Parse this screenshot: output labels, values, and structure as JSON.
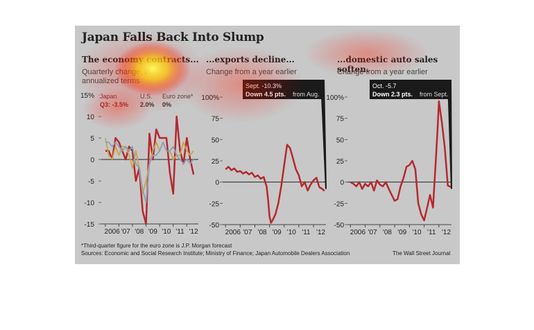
{
  "title": "Japan Falls Back Into Slump",
  "footnote": "*Third-quarter figure for the euro zone is J.P. Morgan forecast",
  "sources": "Sources: Economic and Social Research Institute; Ministry of Finance; Japan Automobile Dealers Association",
  "credit": "The Wall Street Journal",
  "colors": {
    "japan": "#b5282e",
    "us": "#c9a44a",
    "euro": "#8aa0b8",
    "background": "#c8c8c8",
    "annotation_bg": "#1a1a1a"
  },
  "chart_data": [
    {
      "type": "line",
      "title": "The economy contracts...",
      "subtitle_line1": "Quarterly change, in",
      "subtitle_line2": "annualized terms",
      "ylim": [
        -15,
        15
      ],
      "y_ticks": [
        "15%",
        "10",
        "5",
        "0",
        "-5",
        "-10",
        "-15"
      ],
      "x_ticks": [
        "2006",
        "'07",
        "'08",
        "'09",
        "'10",
        "'11",
        "'12"
      ],
      "legend": [
        {
          "name": "Japan",
          "value": "Q3: -3.5%"
        },
        {
          "name": "U.S.",
          "value": "2.0%"
        },
        {
          "name": "Euro zone*",
          "value": "0%"
        }
      ],
      "series": [
        {
          "name": "Japan",
          "color": "#b5282e",
          "x": [
            2006.0,
            2006.25,
            2006.5,
            2006.75,
            2007.0,
            2007.25,
            2007.5,
            2007.75,
            2008.0,
            2008.25,
            2008.5,
            2008.75,
            2009.0,
            2009.25,
            2009.5,
            2009.75,
            2010.0,
            2010.25,
            2010.5,
            2010.75,
            2011.0,
            2011.25,
            2011.5,
            2011.75,
            2012.0,
            2012.25,
            2012.5
          ],
          "values": [
            2,
            2,
            0,
            5,
            4,
            2,
            0,
            3,
            2,
            -5,
            -2,
            -12,
            -15,
            6,
            0,
            7,
            5,
            5,
            5,
            -3,
            -8,
            10,
            2,
            -1,
            5,
            0,
            -3.5
          ]
        },
        {
          "name": "U.S.",
          "color": "#c9a44a",
          "x": [
            2006.0,
            2006.25,
            2006.5,
            2006.75,
            2007.0,
            2007.25,
            2007.5,
            2007.75,
            2008.0,
            2008.25,
            2008.5,
            2008.75,
            2009.0,
            2009.25,
            2009.5,
            2009.75,
            2010.0,
            2010.25,
            2010.5,
            2010.75,
            2011.0,
            2011.25,
            2011.5,
            2011.75,
            2012.0,
            2012.25,
            2012.5
          ],
          "values": [
            5,
            1,
            0,
            3,
            1,
            3,
            3,
            1,
            -2,
            2,
            -2,
            -8,
            -5,
            -1,
            2,
            4,
            2,
            4,
            2,
            2,
            0,
            1,
            1,
            4,
            2,
            1,
            2
          ]
        },
        {
          "name": "Euro zone*",
          "color": "#8aa0b8",
          "x": [
            2006.0,
            2006.25,
            2006.5,
            2006.75,
            2007.0,
            2007.25,
            2007.5,
            2007.75,
            2008.0,
            2008.25,
            2008.5,
            2008.75,
            2009.0,
            2009.25,
            2009.5,
            2009.75,
            2010.0,
            2010.25,
            2010.5,
            2010.75,
            2011.0,
            2011.25,
            2011.5,
            2011.75,
            2012.0,
            2012.25,
            2012.5
          ],
          "values": [
            4,
            4,
            3,
            4,
            3,
            2,
            3,
            2,
            3,
            -1,
            -2,
            -7,
            -10,
            -1,
            1,
            1,
            2,
            4,
            2,
            2,
            3,
            1,
            0,
            -1,
            0,
            -1,
            0
          ]
        }
      ]
    },
    {
      "type": "line",
      "title": "...exports decline...",
      "subtitle_line1": "Change from a year earlier",
      "ylim": [
        -50,
        100
      ],
      "y_ticks": [
        "100%",
        "75",
        "50",
        "25",
        "0",
        "-25",
        "-50"
      ],
      "x_ticks": [
        "2006",
        "'07",
        "'08",
        "'09",
        "'10",
        "'11",
        "'12"
      ],
      "annotation": {
        "line1": "Sept. -10.3%",
        "line2_bold": "Down 4.5 pts.",
        "line2_rest": "from Aug."
      },
      "series": [
        {
          "name": "Exports",
          "color": "#b5282e",
          "x": [
            2006.0,
            2006.2,
            2006.4,
            2006.6,
            2006.8,
            2007.0,
            2007.2,
            2007.4,
            2007.6,
            2007.8,
            2008.0,
            2008.2,
            2008.4,
            2008.6,
            2008.8,
            2008.9,
            2009.0,
            2009.1,
            2009.2,
            2009.4,
            2009.6,
            2009.8,
            2010.0,
            2010.2,
            2010.4,
            2010.6,
            2010.8,
            2011.0,
            2011.2,
            2011.4,
            2011.6,
            2011.8,
            2012.0,
            2012.2,
            2012.4,
            2012.6,
            2012.75
          ],
          "values": [
            15,
            18,
            14,
            16,
            12,
            13,
            10,
            12,
            9,
            11,
            6,
            8,
            4,
            6,
            -5,
            -20,
            -40,
            -48,
            -45,
            -38,
            -25,
            -5,
            20,
            44,
            40,
            28,
            15,
            8,
            -5,
            0,
            -10,
            -3,
            2,
            5,
            -6,
            -8,
            -10.3
          ]
        }
      ]
    },
    {
      "type": "line",
      "title": "...domestic auto sales soften.",
      "subtitle_line1": "Change from a year earlier",
      "ylim": [
        -50,
        100
      ],
      "y_ticks": [
        "100%",
        "75",
        "50",
        "25",
        "0",
        "-25",
        "-50"
      ],
      "x_ticks": [
        "2006",
        "'07",
        "'08",
        "'09",
        "'10",
        "'11",
        "'12"
      ],
      "annotation": {
        "line1": "Oct. -5.7",
        "line2_bold": "Down 2.3 pts.",
        "line2_rest": "from Sept."
      },
      "series": [
        {
          "name": "Auto sales",
          "color": "#b5282e",
          "x": [
            2006.0,
            2006.2,
            2006.4,
            2006.6,
            2006.8,
            2007.0,
            2007.2,
            2007.4,
            2007.6,
            2007.8,
            2008.0,
            2008.2,
            2008.4,
            2008.6,
            2008.8,
            2009.0,
            2009.2,
            2009.4,
            2009.6,
            2009.8,
            2010.0,
            2010.2,
            2010.4,
            2010.6,
            2010.8,
            2011.0,
            2011.2,
            2011.4,
            2011.6,
            2011.8,
            2011.9,
            2012.0,
            2012.2,
            2012.4,
            2012.6,
            2012.8
          ],
          "values": [
            0,
            -2,
            -5,
            0,
            -8,
            -2,
            -5,
            0,
            -10,
            2,
            -3,
            -5,
            0,
            -8,
            -15,
            -22,
            -20,
            -5,
            5,
            18,
            20,
            25,
            15,
            -25,
            -38,
            -45,
            -30,
            -15,
            -30,
            30,
            60,
            95,
            70,
            40,
            -4,
            -5.7
          ]
        }
      ]
    }
  ]
}
